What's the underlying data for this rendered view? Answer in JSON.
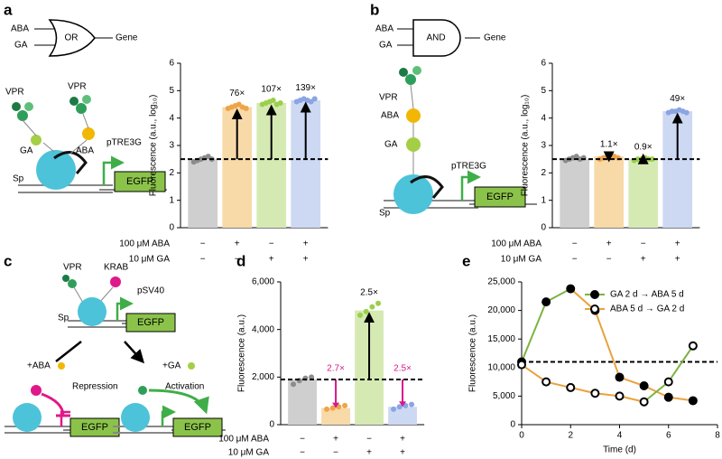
{
  "chart_data": [
    {
      "type": "bar",
      "panel": "a",
      "ylabel": "Fluorescence (a.u., log₁₀)",
      "ylim": [
        0,
        6
      ],
      "yticks": [
        0,
        1,
        2,
        3,
        4,
        5,
        6
      ],
      "values": [
        2.5,
        4.4,
        4.55,
        4.65
      ],
      "colors": [
        "#cfcfcf",
        "#f8d9a8",
        "#d5eab3",
        "#cdd8f2"
      ],
      "point_colors": [
        "#8c8c8c",
        "#eea448",
        "#9bcf4c",
        "#8aa5e3"
      ],
      "points": [
        [
          2.4,
          2.45,
          2.5,
          2.55,
          2.6,
          2.5
        ],
        [
          4.35,
          4.4,
          4.45,
          4.5,
          4.4,
          4.35
        ],
        [
          4.5,
          4.55,
          4.6,
          4.65,
          4.5,
          4.55
        ],
        [
          4.6,
          4.65,
          4.7,
          4.65,
          4.6,
          4.7
        ]
      ],
      "baseline": 2.5,
      "annotations": [
        null,
        "76×",
        "107×",
        "139×"
      ],
      "annotation_colors": [
        "#000000",
        "#000000",
        "#000000",
        "#000000"
      ],
      "conditions": [
        {
          "label": "100 μM ABA",
          "marks": [
            "−",
            "+",
            "−",
            "+"
          ]
        },
        {
          "label": "10 μM GA",
          "marks": [
            "−",
            "−",
            "+",
            "+"
          ]
        }
      ]
    },
    {
      "type": "bar",
      "panel": "b",
      "ylabel": "Fluorescence (a.u., log₁₀)",
      "ylim": [
        0,
        6
      ],
      "yticks": [
        0,
        1,
        2,
        3,
        4,
        5,
        6
      ],
      "values": [
        2.5,
        2.6,
        2.5,
        4.25
      ],
      "colors": [
        "#cfcfcf",
        "#f8d9a8",
        "#d5eab3",
        "#cdd8f2"
      ],
      "point_colors": [
        "#8c8c8c",
        "#eea448",
        "#9bcf4c",
        "#8aa5e3"
      ],
      "points": [
        [
          2.45,
          2.5,
          2.55,
          2.6,
          2.5,
          2.55
        ],
        [
          2.5,
          2.55,
          2.6,
          2.65,
          2.6,
          2.55
        ],
        [
          2.45,
          2.5,
          2.5,
          2.55,
          2.5,
          2.5
        ],
        [
          4.2,
          4.25,
          4.25,
          4.3,
          4.25,
          4.2
        ]
      ],
      "baseline": 2.5,
      "annotations": [
        null,
        "1.1×",
        "0.9×",
        "49×"
      ],
      "annotation_colors": [
        "#000000",
        "#000000",
        "#000000",
        "#000000"
      ],
      "conditions": [
        {
          "label": "100 μM ABA",
          "marks": [
            "−",
            "+",
            "−",
            "+"
          ]
        },
        {
          "label": "10 μM GA",
          "marks": [
            "−",
            "−",
            "+",
            "+"
          ]
        }
      ]
    },
    {
      "type": "bar",
      "panel": "d",
      "ylabel": "Fluorescence (a.u.)",
      "ylim": [
        0,
        6000
      ],
      "yticks": [
        0,
        {
          "value": 2000,
          "label": "2,000"
        },
        {
          "value": 4000,
          "label": "4,000"
        },
        {
          "value": 6000,
          "label": "6,000"
        }
      ],
      "values": [
        1900,
        700,
        4800,
        750
      ],
      "colors": [
        "#cfcfcf",
        "#f8d9a8",
        "#d5eab3",
        "#cdd8f2"
      ],
      "point_colors": [
        "#8c8c8c",
        "#eea448",
        "#9bcf4c",
        "#8aa5e3"
      ],
      "points": [
        [
          1700,
          1850,
          1950,
          2000
        ],
        [
          650,
          700,
          750,
          800
        ],
        [
          4600,
          4750,
          4950,
          5100
        ],
        [
          650,
          750,
          800,
          850
        ]
      ],
      "baseline": 1900,
      "annotations": [
        null,
        "2.7×",
        "2.5×",
        "2.5×"
      ],
      "annotation_colors": [
        "#000000",
        "#d6198a",
        "#000000",
        "#d6198a"
      ],
      "conditions": [
        {
          "label": "100 μM ABA",
          "marks": [
            "−",
            "+",
            "−",
            "+"
          ]
        },
        {
          "label": "10 μM GA",
          "marks": [
            "−",
            "−",
            "+",
            "+"
          ]
        }
      ]
    },
    {
      "type": "line",
      "panel": "e",
      "xlabel": "Time (d)",
      "ylabel": "Fluorescence (a.u.)",
      "xlim": [
        0,
        8
      ],
      "xticks": [
        0,
        2,
        4,
        6,
        8
      ],
      "ylim": [
        0,
        25000
      ],
      "yticks": [
        0,
        {
          "value": 5000,
          "label": "5,000"
        },
        {
          "value": 10000,
          "label": "10,000"
        },
        {
          "value": 15000,
          "label": "15,000"
        },
        {
          "value": 20000,
          "label": "20,000"
        },
        {
          "value": 25000,
          "label": "25,000"
        }
      ],
      "x": [
        0,
        1,
        2,
        3,
        4,
        5,
        6,
        7
      ],
      "baseline": 11000,
      "series": [
        {
          "name": "GA 2 d → ABA 5 d",
          "marker": "filled",
          "color": "#7cb342",
          "values": [
            11000,
            21500,
            23800,
            20000,
            8300,
            6800,
            4800,
            4200
          ],
          "segment_colors": [
            "#7cb342",
            "#7cb342",
            "#e8a33d",
            "#e8a33d",
            "#e8a33d",
            "#e8a33d",
            "#e8a33d"
          ]
        },
        {
          "name": "ABA 5 d → GA 2 d",
          "marker": "open",
          "color": "#e8a33d",
          "values": [
            10500,
            7500,
            6500,
            5500,
            5000,
            4000,
            7500,
            13800
          ],
          "segment_colors": [
            "#e8a33d",
            "#e8a33d",
            "#e8a33d",
            "#e8a33d",
            "#e8a33d",
            "#7cb342",
            "#7cb342"
          ]
        }
      ]
    }
  ],
  "diagrams": {
    "a": {
      "letter": "a",
      "inputs": [
        "ABA",
        "GA"
      ],
      "gate": "OR",
      "output": "Gene",
      "labels": [
        "VPR",
        "VPR",
        "GA",
        "ABA",
        "Sp",
        "pTRE3G",
        "EGFP"
      ]
    },
    "b": {
      "letter": "b",
      "inputs": [
        "ABA",
        "GA"
      ],
      "gate": "AND",
      "output": "Gene",
      "labels": [
        "VPR",
        "ABA",
        "GA",
        "Sp",
        "pTRE3G",
        "EGFP"
      ]
    },
    "c": {
      "letter": "c",
      "labels": [
        "VPR",
        "KRAB",
        "pSV40",
        "Sp",
        "EGFP",
        "+ABA",
        "+GA",
        "Repression",
        "Activation",
        "EGFP",
        "EGFP"
      ]
    },
    "d": {
      "letter": "d"
    },
    "e": {
      "letter": "e"
    }
  }
}
